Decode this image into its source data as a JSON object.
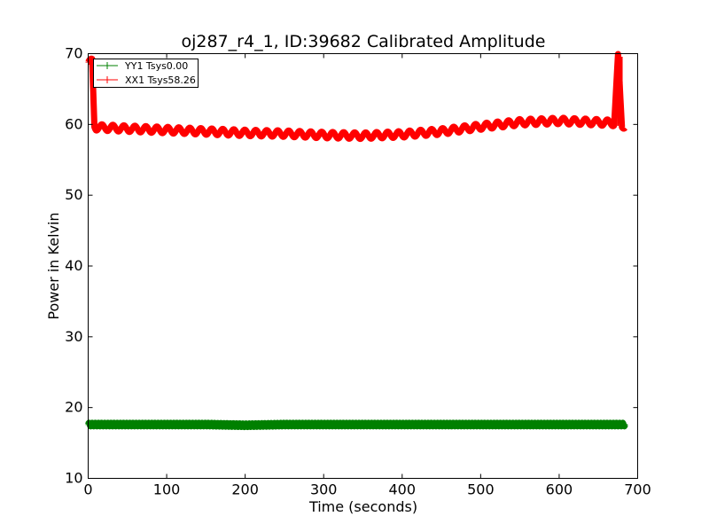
{
  "chart_data": {
    "type": "line",
    "title": "oj287_r4_1, ID:39682 Calibrated Amplitude",
    "xlabel": "Time (seconds)",
    "ylabel": "Power in Kelvin",
    "xlim": [
      0,
      700
    ],
    "ylim": [
      10,
      70
    ],
    "xticks": [
      "0",
      "100",
      "200",
      "300",
      "400",
      "500",
      "600",
      "700"
    ],
    "yticks": [
      "10",
      "20",
      "30",
      "40",
      "50",
      "60",
      "70"
    ],
    "grid": false,
    "legend_position": "top-left",
    "series": [
      {
        "name": "YY1 Tsys0.00",
        "color": "#008000",
        "x": [
          0,
          50,
          100,
          150,
          200,
          250,
          300,
          350,
          400,
          450,
          500,
          550,
          600,
          650,
          684
        ],
        "y": [
          17.6,
          17.6,
          17.6,
          17.6,
          17.5,
          17.6,
          17.6,
          17.6,
          17.6,
          17.6,
          17.6,
          17.6,
          17.6,
          17.6,
          17.6
        ]
      },
      {
        "name": "XX1 Tsys58.26",
        "color": "#ff0000",
        "x": [
          0,
          3,
          5,
          8,
          10,
          30,
          50,
          100,
          150,
          200,
          250,
          300,
          350,
          400,
          450,
          500,
          550,
          600,
          650,
          670,
          675,
          678,
          680,
          684
        ],
        "y": [
          68.8,
          68.8,
          68.9,
          59.8,
          59.6,
          59.5,
          59.4,
          59.2,
          59.0,
          58.8,
          58.7,
          58.5,
          58.4,
          58.6,
          59.0,
          59.7,
          60.3,
          60.5,
          60.3,
          60.2,
          69.5,
          63.5,
          59.8,
          59.9
        ]
      }
    ]
  }
}
